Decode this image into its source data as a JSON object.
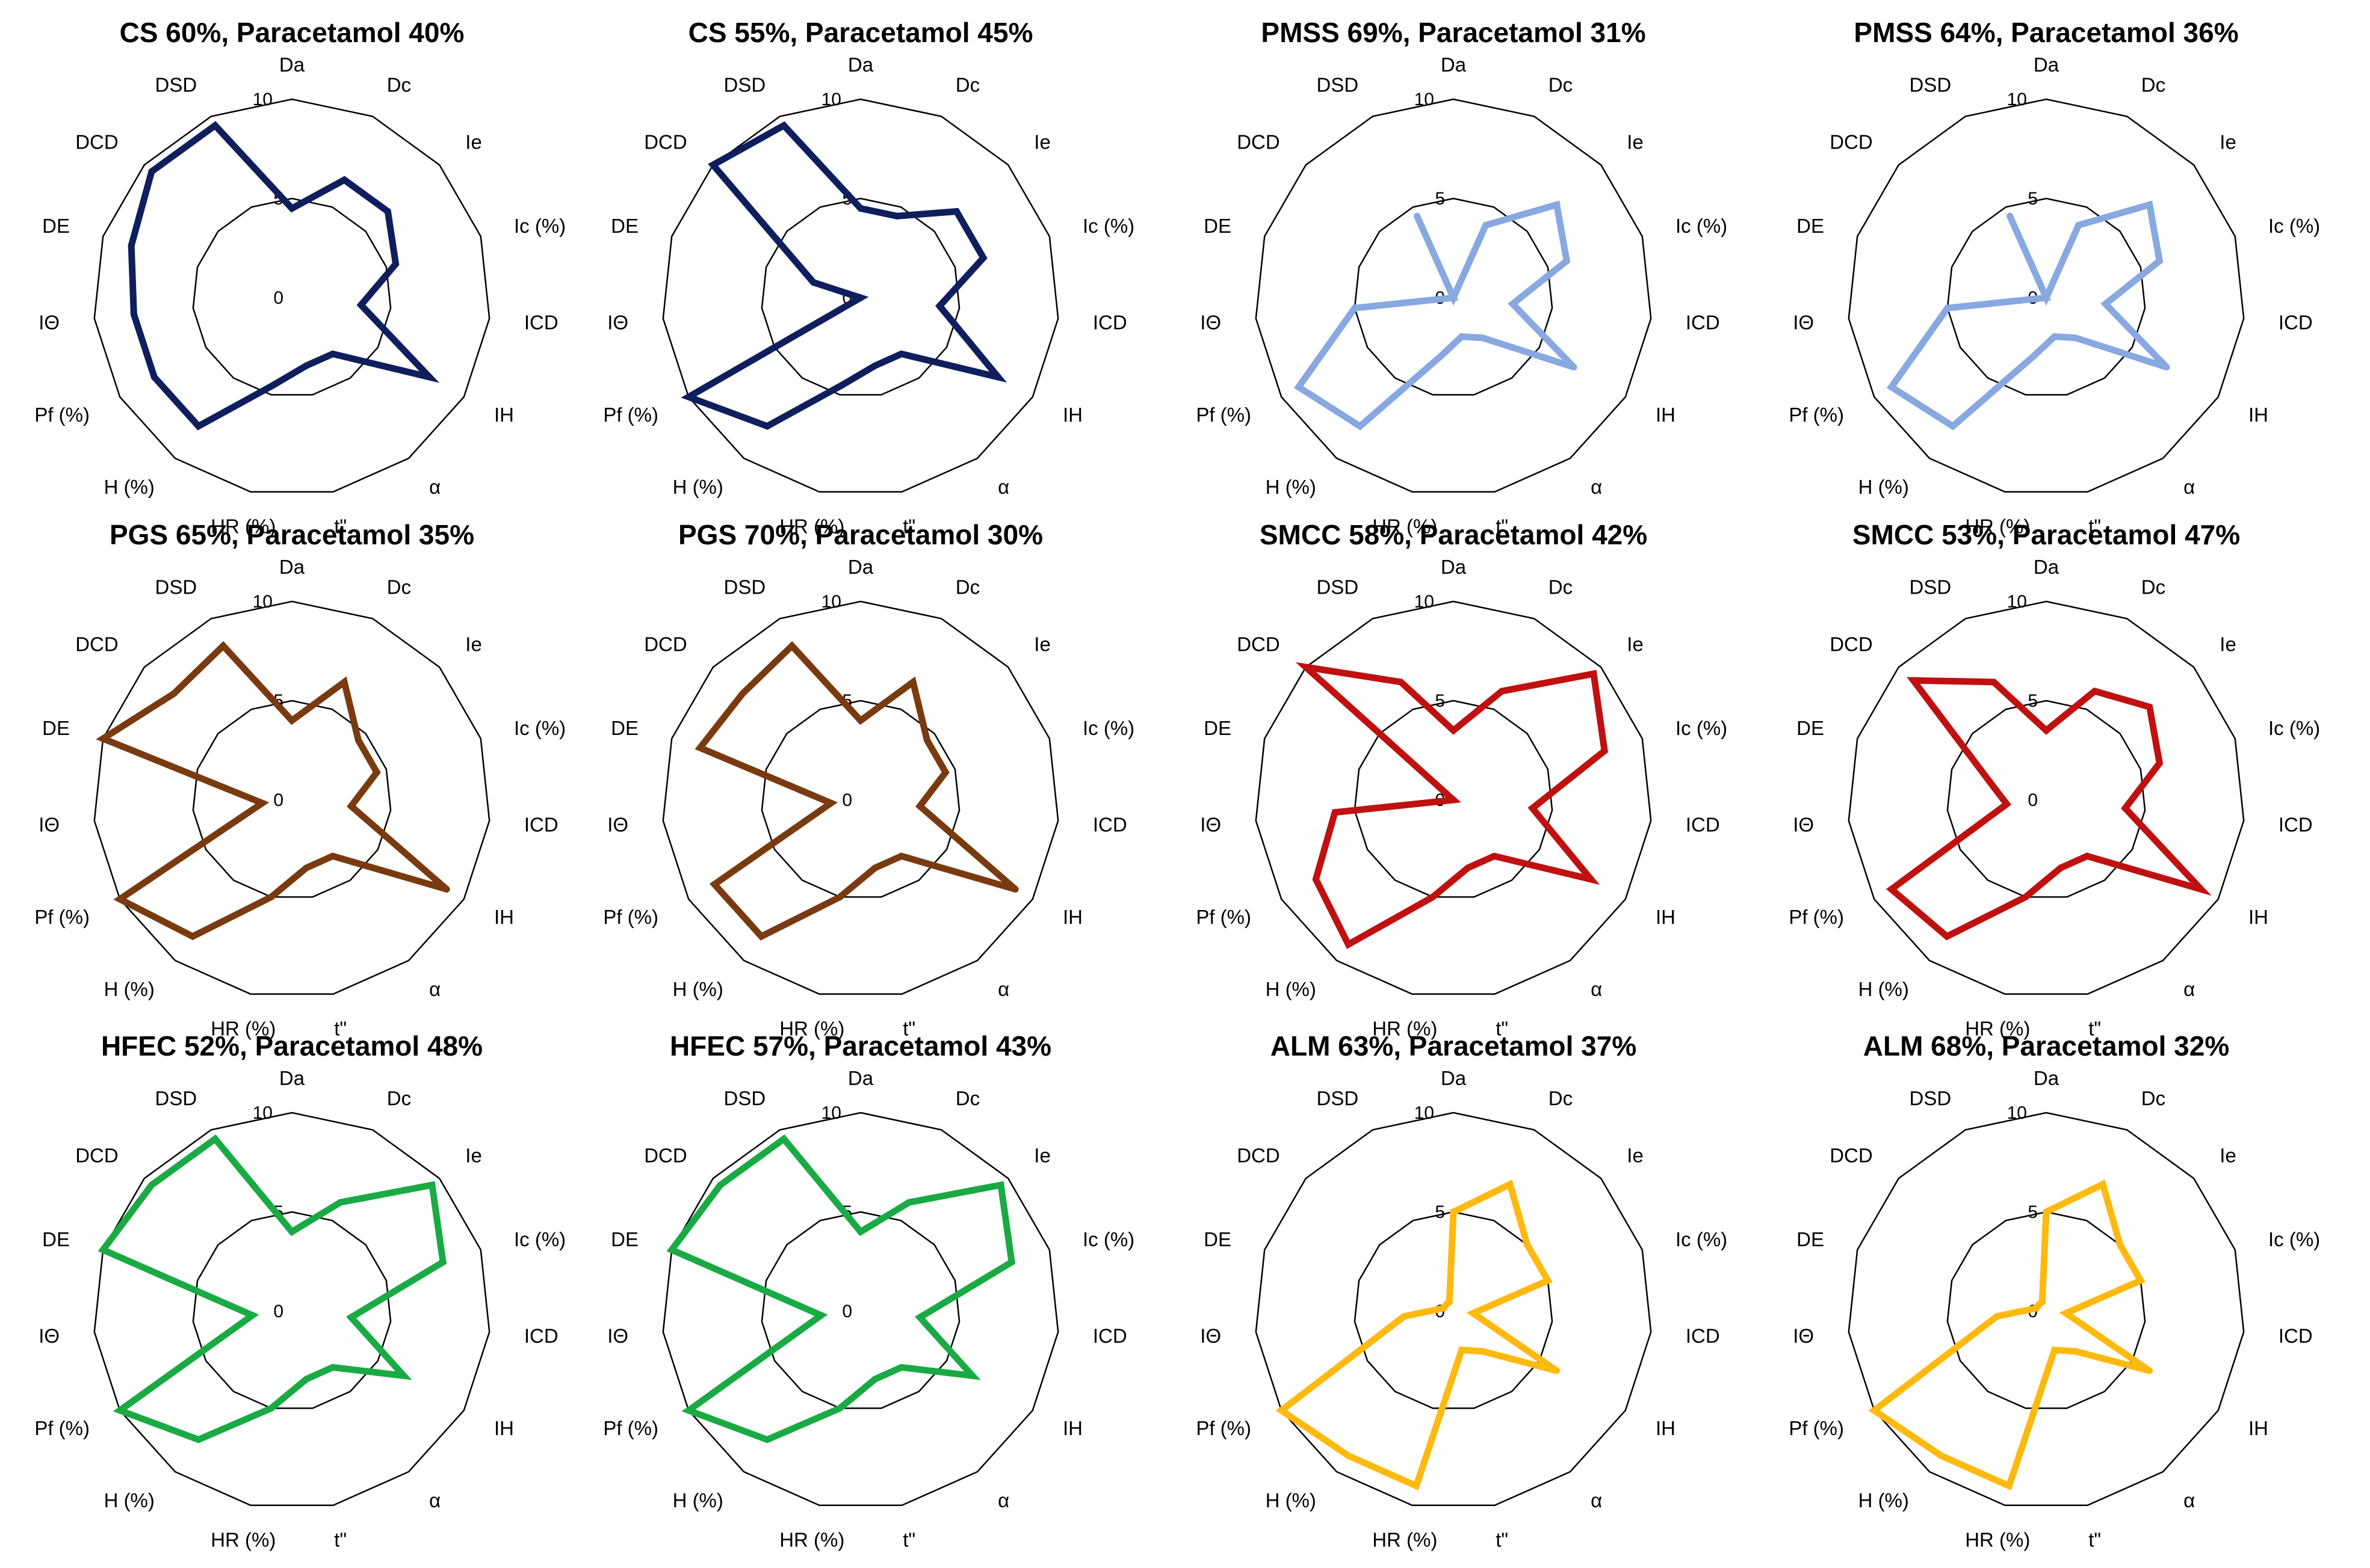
{
  "figure": {
    "axes": [
      "Da",
      "Dc",
      "Ie",
      "Ic (%)",
      "ICD",
      "IH",
      "α",
      "t\"",
      "HR (%)",
      "H (%)",
      "Pf (%)",
      "IΘ",
      "DE",
      "DCD",
      "DSD"
    ],
    "ticks": [
      "0",
      "5",
      "10"
    ]
  },
  "chart_data": [
    {
      "type": "radar",
      "title": "CS 60%, Paracetamol 40%",
      "color": "#0f1e5c",
      "rlim": [
        0,
        10
      ],
      "series": [
        {
          "name": "CS 60%, Paracetamol 40%",
          "values": [
            4.5,
            6.5,
            6.5,
            5.5,
            3.5,
            8.0,
            3.5,
            3.5,
            4.5,
            8.0,
            8.0,
            8.0,
            8.5,
            9.5,
            9.5
          ]
        }
      ]
    },
    {
      "type": "radar",
      "title": "CS 55%, Paracetamol 45%",
      "color": "#0f1e5c",
      "rlim": [
        0,
        10
      ],
      "series": [
        {
          "name": "CS 55%, Paracetamol 45%",
          "values": [
            4.5,
            4.5,
            6.5,
            6.5,
            4.0,
            8.0,
            3.5,
            3.5,
            4.5,
            8.0,
            10.0,
            0.0,
            2.5,
            10.0,
            9.5
          ]
        }
      ]
    },
    {
      "type": "radar",
      "title": "PMSS 69%, Paracetamol 31%",
      "color": "#87a8e0",
      "rlim": [
        0,
        10
      ],
      "series": [
        {
          "name": "PMSS 69%, Paracetamol 31%",
          "values": [
            0.0,
            4.0,
            7.0,
            6.0,
            3.0,
            7.0,
            2.5,
            2.0,
            3.0,
            8.0,
            9.0,
            5.0,
            0.0,
            0.0,
            4.5
          ]
        }
      ]
    },
    {
      "type": "radar",
      "title": "PMSS 64%, Paracetamol 36%",
      "color": "#87a8e0",
      "rlim": [
        0,
        10
      ],
      "series": [
        {
          "name": "PMSS 64%, Paracetamol 36%",
          "values": [
            0.0,
            4.0,
            7.0,
            6.0,
            3.0,
            7.0,
            2.5,
            2.0,
            3.0,
            8.0,
            9.0,
            5.0,
            0.0,
            0.0,
            4.5
          ]
        }
      ]
    },
    {
      "type": "radar",
      "title": "PGS 65%, Paracetamol 35%",
      "color": "#7a3a10",
      "rlim": [
        0,
        10
      ],
      "series": [
        {
          "name": "PGS 65%, Paracetamol 35%",
          "values": [
            4.0,
            6.5,
            4.5,
            4.5,
            3.0,
            9.0,
            3.5,
            3.5,
            5.0,
            8.5,
            10.0,
            1.5,
            10.0,
            8.0,
            8.5
          ]
        }
      ]
    },
    {
      "type": "radar",
      "title": "PGS 70%, Paracetamol 30%",
      "color": "#7a3a10",
      "rlim": [
        0,
        10
      ],
      "series": [
        {
          "name": "PGS 70%, Paracetamol 30%",
          "values": [
            4.0,
            6.5,
            4.5,
            4.5,
            3.0,
            9.0,
            3.5,
            3.5,
            5.0,
            8.5,
            8.5,
            1.5,
            8.5,
            8.0,
            8.5
          ]
        }
      ]
    },
    {
      "type": "radar",
      "title": "SMCC 58%, Paracetamol 42%",
      "color": "#c01010",
      "rlim": [
        0,
        10
      ],
      "series": [
        {
          "name": "SMCC 58%, Paracetamol 42%",
          "values": [
            3.5,
            6.0,
            9.5,
            8.0,
            4.0,
            8.0,
            3.5,
            3.5,
            5.0,
            9.0,
            8.0,
            6.0,
            0.0,
            10.0,
            6.5
          ]
        }
      ]
    },
    {
      "type": "radar",
      "title": "SMCC 53%, Paracetamol 47%",
      "color": "#c01010",
      "rlim": [
        0,
        10
      ],
      "series": [
        {
          "name": "SMCC 53%, Paracetamol 47%",
          "values": [
            3.5,
            6.0,
            7.0,
            6.0,
            4.0,
            9.0,
            3.5,
            3.5,
            5.0,
            8.5,
            9.0,
            2.0,
            3.0,
            9.0,
            6.5
          ]
        }
      ]
    },
    {
      "type": "radar",
      "title": "HFEC 52%, Paracetamol 48%",
      "color": "#1aaa44",
      "rlim": [
        0,
        10
      ],
      "series": [
        {
          "name": "HFEC 52%, Paracetamol 48%",
          "values": [
            4.0,
            6.0,
            9.5,
            8.0,
            3.0,
            6.5,
            3.5,
            3.5,
            5.0,
            8.0,
            10.0,
            2.0,
            10.0,
            9.5,
            9.5
          ]
        }
      ]
    },
    {
      "type": "radar",
      "title": "HFEC 57%, Paracetamol 43%",
      "color": "#1aaa44",
      "rlim": [
        0,
        10
      ],
      "series": [
        {
          "name": "HFEC 57%, Paracetamol 43%",
          "values": [
            4.0,
            6.0,
            9.5,
            8.0,
            3.0,
            6.5,
            3.5,
            3.5,
            5.0,
            8.0,
            10.0,
            2.0,
            10.0,
            9.5,
            9.5
          ]
        }
      ]
    },
    {
      "type": "radar",
      "title": "ALM 63%, Paracetamol 37%",
      "color": "#ffb90f",
      "rlim": [
        0,
        10
      ],
      "series": [
        {
          "name": "ALM 63%, Paracetamol 37%",
          "values": [
            5.0,
            7.0,
            5.0,
            5.0,
            1.0,
            6.0,
            2.5,
            2.0,
            9.0,
            9.0,
            10.0,
            2.5,
            0.5,
            0.5,
            0.5
          ]
        }
      ]
    },
    {
      "type": "radar",
      "title": "ALM 68%, Paracetamol 32%",
      "color": "#ffb90f",
      "rlim": [
        0,
        10
      ],
      "series": [
        {
          "name": "ALM 68%, Paracetamol 32%",
          "values": [
            5.0,
            7.0,
            5.0,
            5.0,
            1.0,
            6.0,
            2.5,
            2.0,
            9.0,
            9.0,
            10.0,
            2.5,
            0.5,
            0.5,
            0.5
          ]
        }
      ]
    }
  ]
}
